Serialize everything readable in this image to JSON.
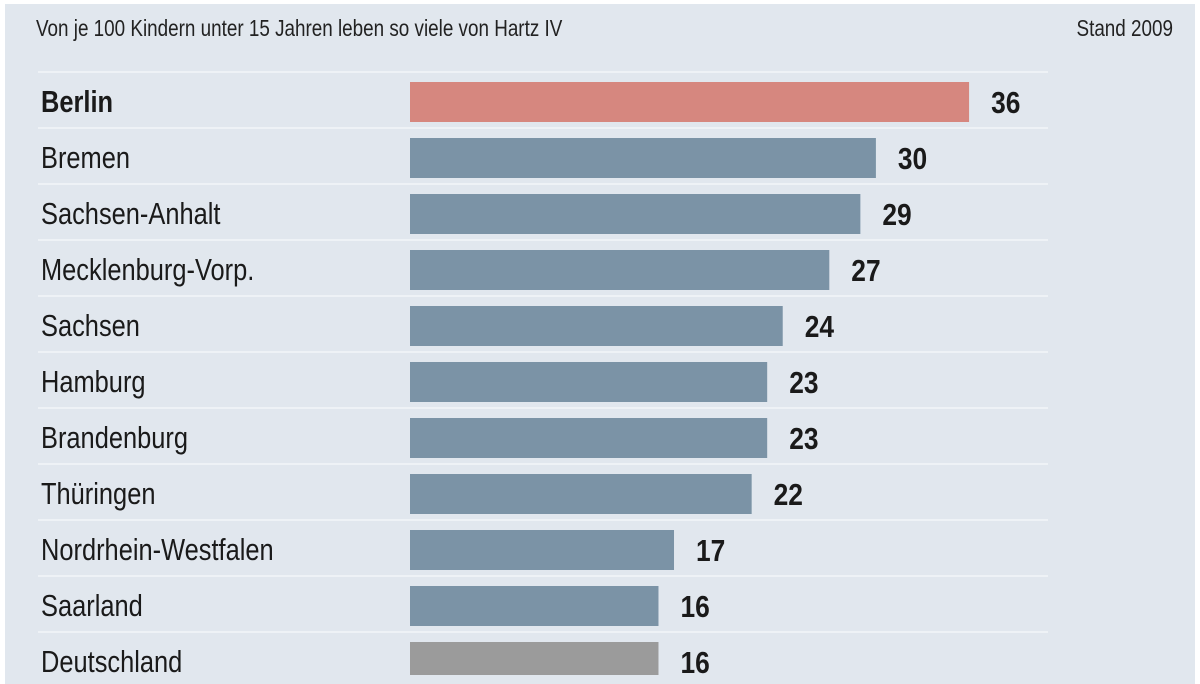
{
  "chart_data": {
    "type": "bar",
    "orientation": "horizontal",
    "title": "Von je 100 Kindern unter 15 Jahren leben so viele von Hartz IV",
    "note": "Stand 2009",
    "categories": [
      "Berlin",
      "Bremen",
      "Sachsen-Anhalt",
      "Mecklenburg-Vorp.",
      "Sachsen",
      "Hamburg",
      "Brandenburg",
      "Thüringen",
      "Nordrhein-Westfalen",
      "Saarland",
      "Deutschland"
    ],
    "values": [
      36,
      30,
      29,
      27,
      24,
      23,
      23,
      22,
      17,
      16,
      16
    ],
    "highlight": {
      "Berlin": "#d6877f",
      "Deutschland": "#9b9b9b"
    },
    "bar_color": "#7b93a6",
    "background": "#e1e7ee",
    "grid": false,
    "data_labels": true
  }
}
